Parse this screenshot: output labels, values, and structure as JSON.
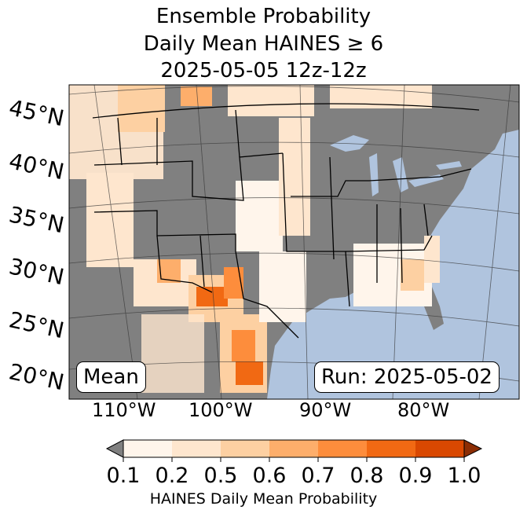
{
  "title": {
    "line1": "Ensemble Probability",
    "line2": "Daily Mean HAINES ≥ 6",
    "line3": "2025-05-05 12z-12z"
  },
  "map": {
    "projection": "lambert-conformal",
    "region": "CONUS",
    "lat_labels": [
      "45°N",
      "40°N",
      "35°N",
      "30°N",
      "25°N",
      "20°N"
    ],
    "lon_labels": [
      "110°W",
      "100°W",
      "90°W",
      "80°W"
    ],
    "ocean_color": "#b0c4de",
    "land_color": "#808080"
  },
  "stat_label": "Mean",
  "run_label": "Run: 2025-05-02",
  "colorbar": {
    "label": "HAINES Daily Mean Probability",
    "ticks": [
      "0.1",
      "0.2",
      "0.5",
      "0.6",
      "0.7",
      "0.8",
      "0.9",
      "1.0"
    ],
    "under_color": "#808080",
    "colors": [
      "#fff5eb",
      "#fee6ce",
      "#fdd0a2",
      "#fdae6b",
      "#fd8d3c",
      "#f16913",
      "#d94801"
    ],
    "over_color": "#8c2d04"
  }
}
